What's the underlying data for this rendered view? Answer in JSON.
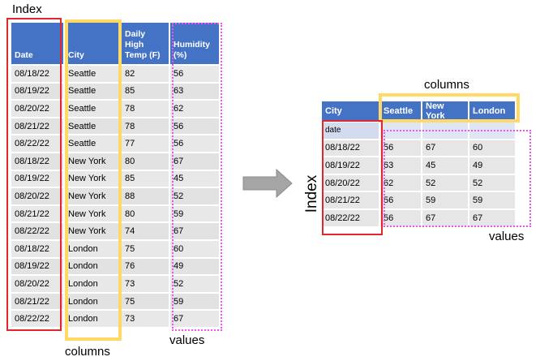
{
  "annotations": {
    "index_top": "Index",
    "columns_bottom": "columns",
    "values_bottom": "values",
    "columns_top": "columns",
    "index_side": "Index",
    "values_right": "values"
  },
  "colors": {
    "header_blue": "#4472c4",
    "cell_gray": "#e8e8e8",
    "index_red": "#e0282c",
    "columns_yellow": "#ffd966",
    "values_magenta": "#ee55ee",
    "arrow_gray": "#a5a5a5"
  },
  "source_table": {
    "headers": [
      "Date",
      "City",
      "Daily High Temp (F)",
      "Humidity (%)"
    ],
    "rows": [
      [
        "08/18/22",
        "Seattle",
        "82",
        "56"
      ],
      [
        "08/19/22",
        "Seattle",
        "85",
        "63"
      ],
      [
        "08/20/22",
        "Seattle",
        "78",
        "62"
      ],
      [
        "08/21/22",
        "Seattle",
        "78",
        "56"
      ],
      [
        "08/22/22",
        "Seattle",
        "77",
        "56"
      ],
      [
        "08/18/22",
        "New York",
        "80",
        "67"
      ],
      [
        "08/19/22",
        "New York",
        "85",
        "45"
      ],
      [
        "08/20/22",
        "New York",
        "88",
        "52"
      ],
      [
        "08/21/22",
        "New York",
        "80",
        "59"
      ],
      [
        "08/22/22",
        "New York",
        "74",
        "67"
      ],
      [
        "08/18/22",
        "London",
        "75",
        "60"
      ],
      [
        "08/19/22",
        "London",
        "76",
        "49"
      ],
      [
        "08/20/22",
        "London",
        "73",
        "52"
      ],
      [
        "08/21/22",
        "London",
        "75",
        "59"
      ],
      [
        "08/22/22",
        "London",
        "73",
        "67"
      ]
    ]
  },
  "pivot_table": {
    "corner": "City",
    "columns": [
      "Seattle",
      "New York",
      "London"
    ],
    "index_name": "date",
    "rows": [
      {
        "date": "08/18/22",
        "values": [
          "56",
          "67",
          "60"
        ]
      },
      {
        "date": "08/19/22",
        "values": [
          "63",
          "45",
          "49"
        ]
      },
      {
        "date": "08/20/22",
        "values": [
          "62",
          "52",
          "52"
        ]
      },
      {
        "date": "08/21/22",
        "values": [
          "56",
          "59",
          "59"
        ]
      },
      {
        "date": "08/22/22",
        "values": [
          "56",
          "67",
          "67"
        ]
      }
    ]
  }
}
